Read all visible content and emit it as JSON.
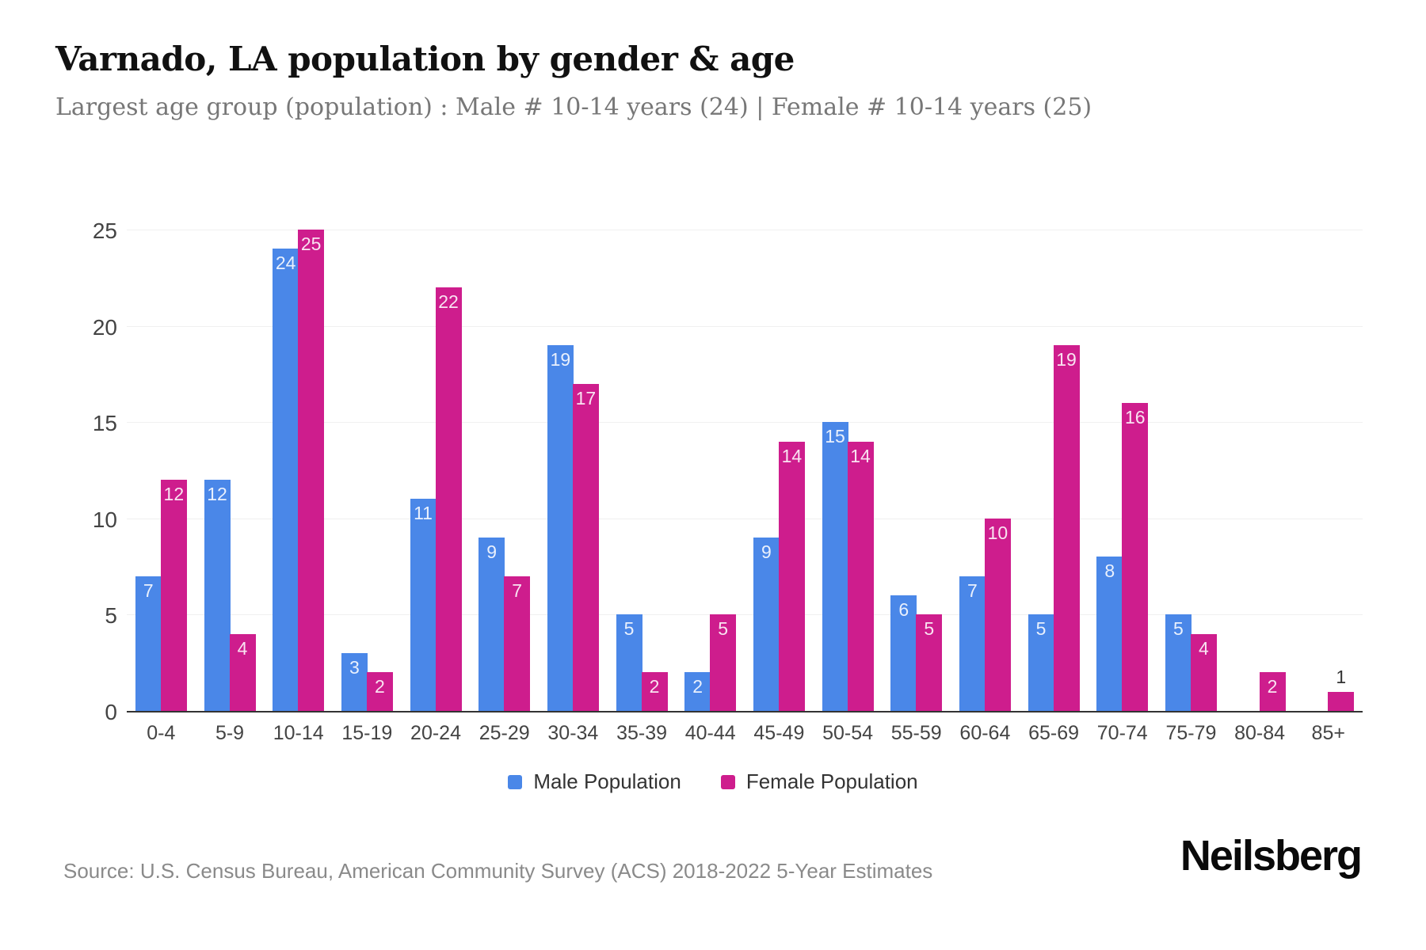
{
  "page": {
    "title": "Varnado, LA population by gender & age",
    "subtitle": "Largest age group (population) : Male # 10-14 years (24) | Female # 10-14 years (25)",
    "source": "Source: U.S. Census Bureau, American Community Survey (ACS) 2018-2022 5-Year Estimates",
    "brand": "Neilsberg"
  },
  "chart_data": {
    "type": "bar",
    "title": "Varnado, LA population by gender & age",
    "subtitle": "Largest age group (population) : Male # 10-14 years (24) | Female # 10-14 years (25)",
    "categories": [
      "0-4",
      "5-9",
      "10-14",
      "15-19",
      "20-24",
      "25-29",
      "30-34",
      "35-39",
      "40-44",
      "45-49",
      "50-54",
      "55-59",
      "60-64",
      "65-69",
      "70-74",
      "75-79",
      "80-84",
      "85+"
    ],
    "series": [
      {
        "name": "Male Population",
        "color": "#4A87E8",
        "values": [
          7,
          12,
          24,
          3,
          11,
          9,
          19,
          5,
          2,
          9,
          15,
          6,
          7,
          5,
          8,
          5,
          0,
          0
        ]
      },
      {
        "name": "Female Population",
        "color": "#CE1D8D",
        "values": [
          12,
          4,
          25,
          2,
          22,
          7,
          17,
          2,
          5,
          14,
          14,
          5,
          10,
          19,
          16,
          4,
          2,
          1
        ]
      }
    ],
    "xlabel": "",
    "ylabel": "",
    "ylim": [
      0,
      25
    ],
    "yticks": [
      0,
      5,
      10,
      15,
      20,
      25
    ],
    "grid": "horizontal",
    "legend_position": "bottom"
  }
}
